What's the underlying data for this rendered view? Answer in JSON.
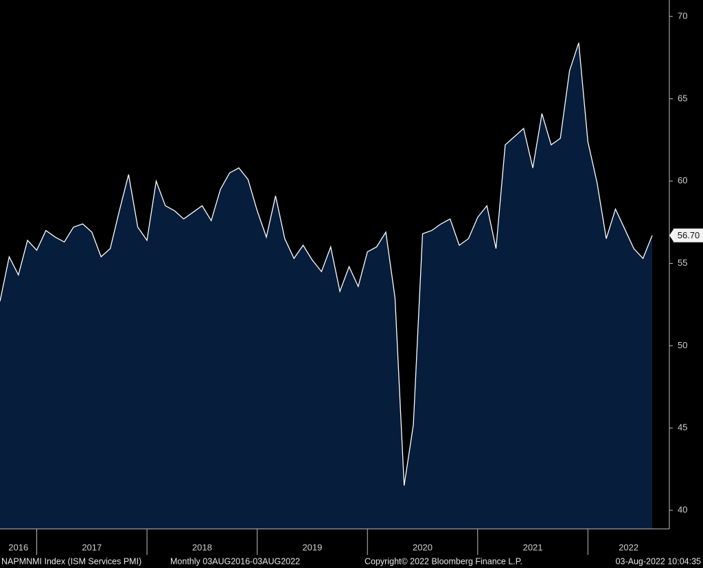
{
  "chart_data": {
    "type": "area",
    "color": "#071d3c",
    "line_color": "#ffffff",
    "values": [
      52.7,
      55.4,
      54.3,
      56.4,
      55.8,
      57.0,
      56.6,
      56.3,
      57.2,
      57.4,
      56.9,
      55.4,
      55.9,
      58.2,
      60.4,
      57.2,
      56.4,
      60.0,
      58.5,
      58.2,
      57.7,
      58.1,
      58.5,
      57.6,
      59.5,
      60.5,
      60.8,
      60.1,
      58.2,
      56.6,
      59.1,
      56.5,
      55.3,
      56.1,
      55.2,
      54.5,
      56.0,
      53.3,
      54.8,
      53.6,
      55.7,
      56.0,
      56.9,
      52.9,
      41.5,
      45.2,
      56.8,
      57.0,
      57.4,
      57.7,
      56.1,
      56.5,
      57.8,
      58.5,
      55.9,
      62.2,
      62.7,
      63.2,
      60.8,
      64.1,
      62.2,
      62.6,
      66.7,
      68.4,
      62.4,
      59.9,
      56.5,
      58.3,
      57.1,
      55.9,
      55.3,
      56.7
    ],
    "value_labels": [
      null,
      null,
      null,
      null,
      null,
      null,
      null,
      null,
      null,
      null,
      null,
      null,
      null,
      null,
      null,
      null,
      null,
      null,
      null,
      null,
      null,
      null,
      null,
      null,
      null,
      null,
      null,
      null,
      null,
      null,
      null,
      null,
      null,
      null,
      null,
      null,
      null,
      null,
      null,
      null,
      null,
      null,
      null,
      null,
      null,
      null,
      null,
      null,
      null,
      null,
      null,
      null,
      null,
      null,
      null,
      null,
      null,
      null,
      null,
      null,
      null,
      null,
      null,
      null,
      null,
      null,
      null,
      null,
      null,
      null,
      null,
      "56.70"
    ],
    "year_labels": [
      "2016",
      "2017",
      "2018",
      "2019",
      "2020",
      "2021",
      "2022"
    ],
    "ylim": [
      40,
      70
    ],
    "yticks": [
      40,
      45,
      50,
      55,
      60,
      65,
      70
    ],
    "y_axis_side": "right"
  },
  "footer": {
    "index_name": "NAPMNMI Index (ISM Services PMI)",
    "range": "Monthly 03AUG2016-03AUG2022",
    "copyright": "Copyright© 2022 Bloomberg Finance L.P.",
    "timestamp": "03-Aug-2022 10:04:35"
  }
}
